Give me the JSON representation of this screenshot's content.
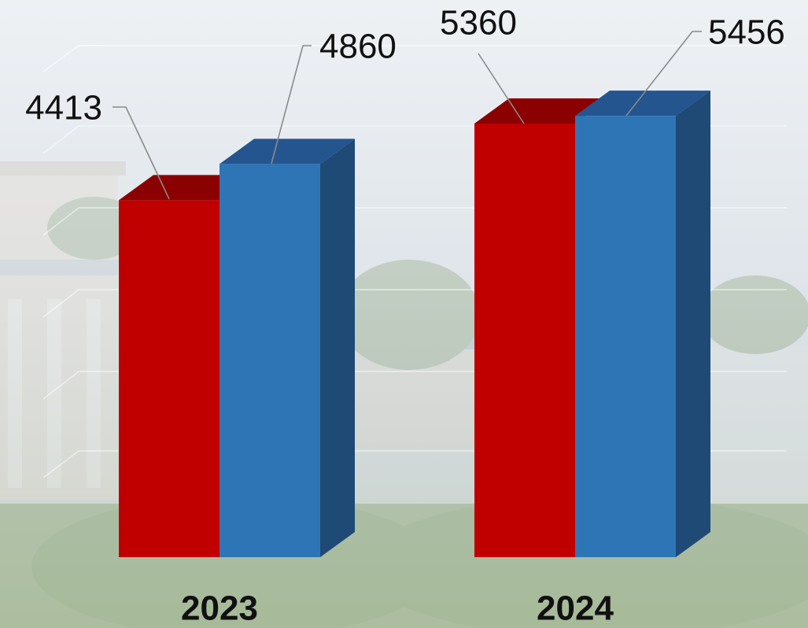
{
  "chart_data": {
    "type": "bar",
    "categories": [
      "2023",
      "2024"
    ],
    "series": [
      {
        "values": [
          4413,
          5360
        ]
      },
      {
        "values": [
          4860,
          5456
        ]
      }
    ],
    "data_labels": [
      "4413",
      "4860",
      "5360",
      "5456"
    ],
    "title": "",
    "xlabel": "",
    "ylabel": "",
    "ylim": [
      0,
      6000
    ],
    "grid": true,
    "legend": "none",
    "colors": {
      "series_1": "#c00000",
      "series_1_top": "#8b0000",
      "series_2": "#2e75b6",
      "series_2_top": "#24558f",
      "series_2_side": "#1f4a76"
    }
  }
}
